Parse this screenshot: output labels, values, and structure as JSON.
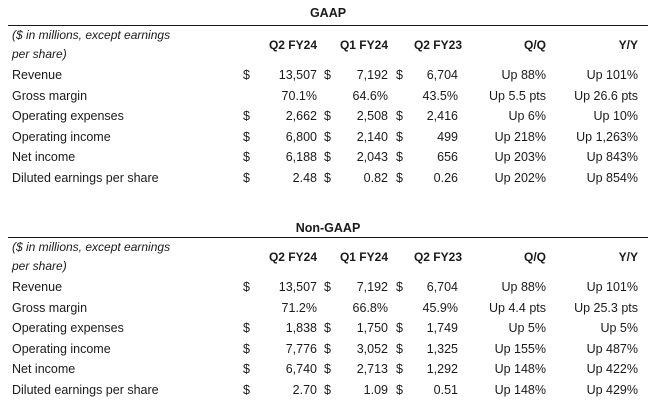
{
  "tables": [
    {
      "title": "GAAP",
      "note": "($ in millions, except earnings per share)",
      "note_line1": "($ in millions, except earnings",
      "note_line2": "per share)",
      "columns": [
        "Q2 FY24",
        "Q1 FY24",
        "Q2 FY23",
        "Q/Q",
        "Y/Y"
      ],
      "rows": [
        {
          "label": "Revenue",
          "c1": "$",
          "v1": "13,507",
          "c2": "$",
          "v2": "7,192",
          "c3": "$",
          "v3": "6,704",
          "qq": "Up 88%",
          "yy": "Up 101%"
        },
        {
          "label": "Gross margin",
          "c1": "",
          "v1": "70.1%",
          "c2": "",
          "v2": "64.6%",
          "c3": "",
          "v3": "43.5%",
          "qq": "Up 5.5 pts",
          "yy": "Up 26.6 pts"
        },
        {
          "label": "Operating expenses",
          "c1": "$",
          "v1": "2,662",
          "c2": "$",
          "v2": "2,508",
          "c3": "$",
          "v3": "2,416",
          "qq": "Up 6%",
          "yy": "Up 10%"
        },
        {
          "label": "Operating income",
          "c1": "$",
          "v1": "6,800",
          "c2": "$",
          "v2": "2,140",
          "c3": "$",
          "v3": "499",
          "qq": "Up 218%",
          "yy": "Up 1,263%"
        },
        {
          "label": "Net income",
          "c1": "$",
          "v1": "6,188",
          "c2": "$",
          "v2": "2,043",
          "c3": "$",
          "v3": "656",
          "qq": "Up 203%",
          "yy": "Up 843%"
        },
        {
          "label": "Diluted earnings per share",
          "c1": "$",
          "v1": "2.48",
          "c2": "$",
          "v2": "0.82",
          "c3": "$",
          "v3": "0.26",
          "qq": "Up 202%",
          "yy": "Up 854%"
        }
      ]
    },
    {
      "title": "Non-GAAP",
      "note_line1": "($ in millions, except earnings",
      "note_line2": "per share)",
      "columns": [
        "Q2 FY24",
        "Q1 FY24",
        "Q2 FY23",
        "Q/Q",
        "Y/Y"
      ],
      "rows": [
        {
          "label": "Revenue",
          "c1": "$",
          "v1": "13,507",
          "c2": "$",
          "v2": "7,192",
          "c3": "$",
          "v3": "6,704",
          "qq": "Up 88%",
          "yy": "Up 101%"
        },
        {
          "label": "Gross margin",
          "c1": "",
          "v1": "71.2%",
          "c2": "",
          "v2": "66.8%",
          "c3": "",
          "v3": "45.9%",
          "qq": "Up 4.4 pts",
          "yy": "Up 25.3 pts"
        },
        {
          "label": "Operating expenses",
          "c1": "$",
          "v1": "1,838",
          "c2": "$",
          "v2": "1,750",
          "c3": "$",
          "v3": "1,749",
          "qq": "Up 5%",
          "yy": "Up 5%"
        },
        {
          "label": "Operating income",
          "c1": "$",
          "v1": "7,776",
          "c2": "$",
          "v2": "3,052",
          "c3": "$",
          "v3": "1,325",
          "qq": "Up 155%",
          "yy": "Up 487%"
        },
        {
          "label": "Net income",
          "c1": "$",
          "v1": "6,740",
          "c2": "$",
          "v2": "2,713",
          "c3": "$",
          "v3": "1,292",
          "qq": "Up 148%",
          "yy": "Up 422%"
        },
        {
          "label": "Diluted earnings per share",
          "c1": "$",
          "v1": "2.70",
          "c2": "$",
          "v2": "1.09",
          "c3": "$",
          "v3": "0.51",
          "qq": "Up 148%",
          "yy": "Up 429%"
        }
      ]
    }
  ]
}
